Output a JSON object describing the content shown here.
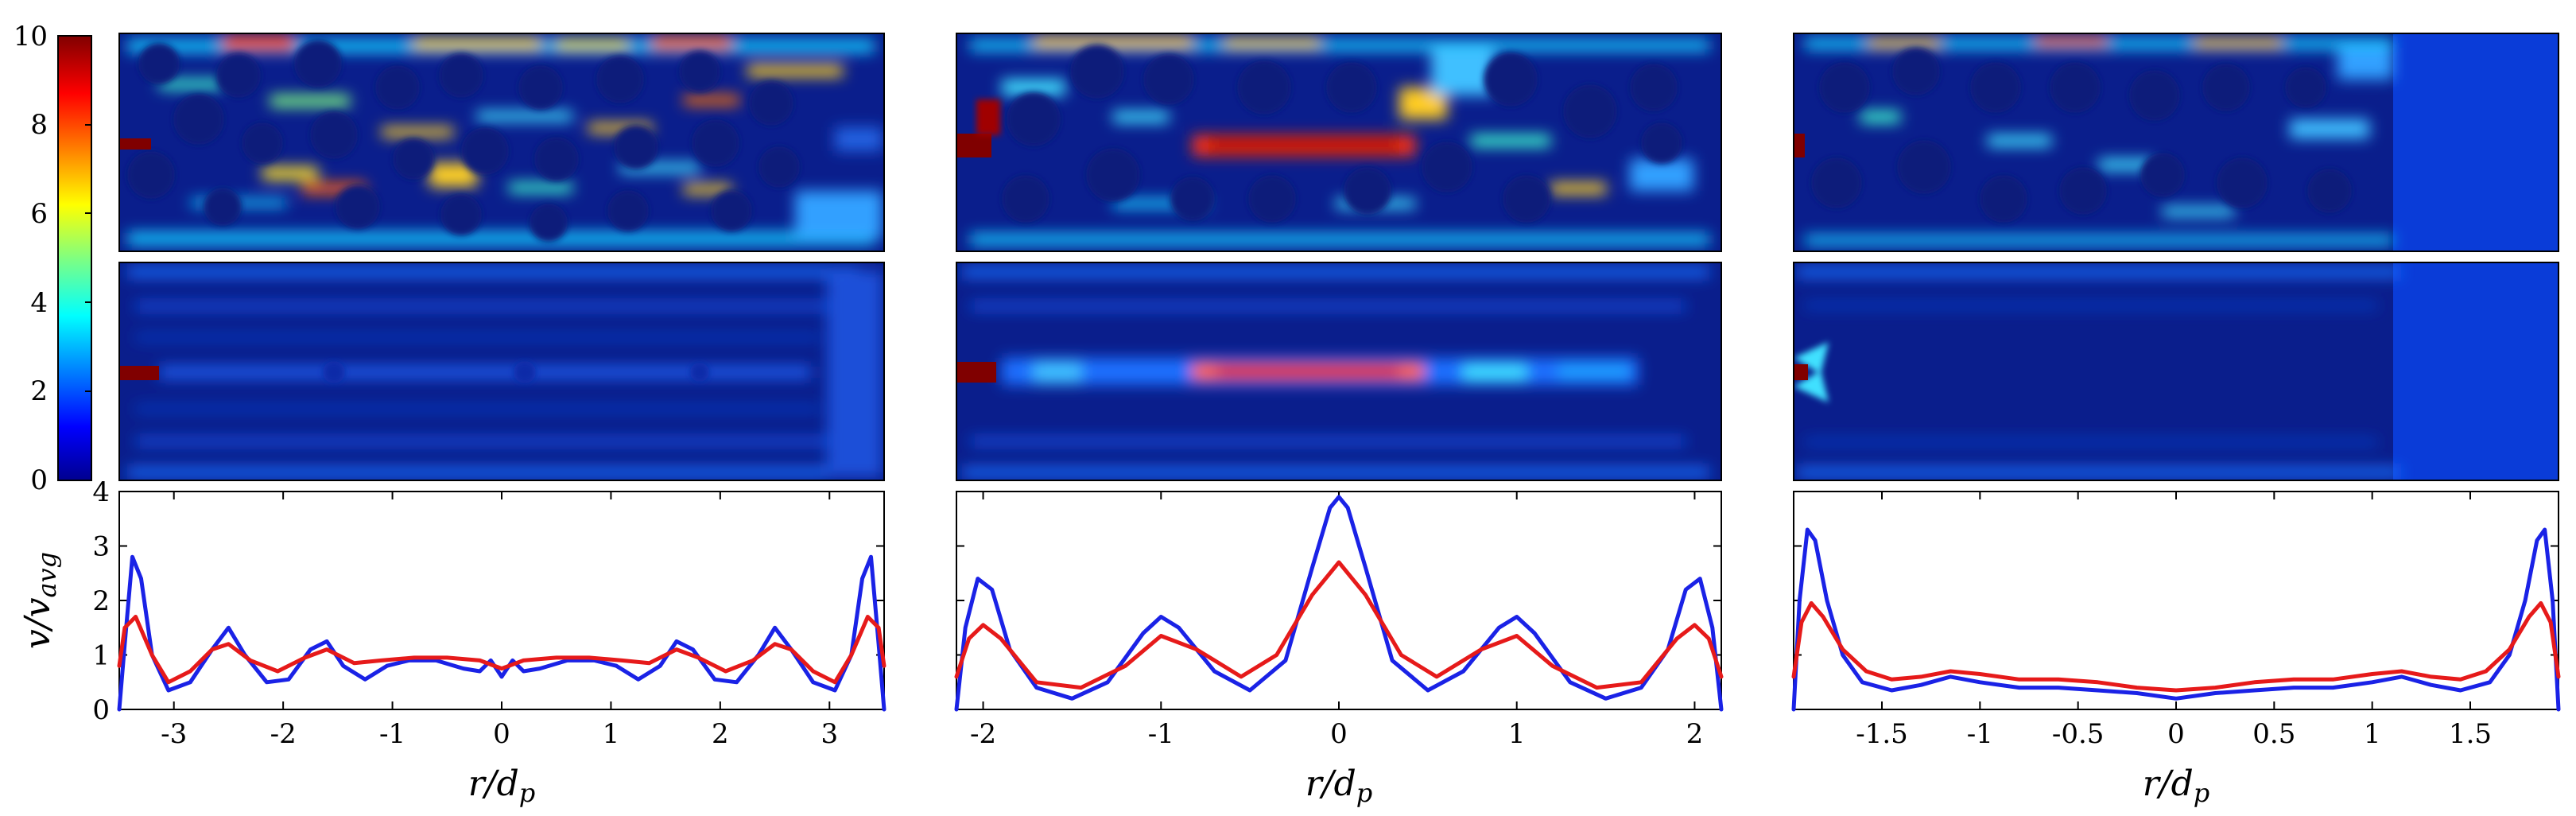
{
  "colorbar": {
    "tick_labels": [
      "10",
      "8",
      "6",
      "4",
      "2",
      "0"
    ],
    "range": [
      0,
      10
    ],
    "colormap": "jet"
  },
  "colors": {
    "blue_line": "#1a22e6",
    "red_line": "#e61a1a",
    "field_background": "#0a1e8c"
  },
  "field_maps": [
    {
      "column": 1,
      "rows": [
        "upper",
        "lower"
      ]
    },
    {
      "column": 2,
      "rows": [
        "upper",
        "lower"
      ]
    },
    {
      "column": 3,
      "rows": [
        "upper",
        "lower"
      ]
    }
  ],
  "chart_data": [
    {
      "type": "line",
      "ylabel": "v/v_avg",
      "xlabel": "r/d_p",
      "xlim": [
        -3.5,
        3.5
      ],
      "ylim": [
        0,
        4
      ],
      "xticks": [
        -3,
        -2,
        -1,
        0,
        1,
        2,
        3
      ],
      "xtick_labels": [
        "-3",
        "-2",
        "-1",
        "0",
        "1",
        "2",
        "3"
      ],
      "yticks": [
        0,
        1,
        2,
        3,
        4
      ],
      "ytick_labels": [
        "0",
        "1",
        "2",
        "3",
        "4"
      ],
      "series": [
        {
          "name": "blue",
          "x": [
            -3.5,
            -3.45,
            -3.38,
            -3.3,
            -3.2,
            -3.05,
            -2.85,
            -2.65,
            -2.5,
            -2.35,
            -2.15,
            -1.95,
            -1.75,
            -1.6,
            -1.45,
            -1.25,
            -1.05,
            -0.85,
            -0.6,
            -0.35,
            -0.2,
            -0.1,
            0.0,
            0.1,
            0.2,
            0.35,
            0.6,
            0.85,
            1.05,
            1.25,
            1.45,
            1.6,
            1.75,
            1.95,
            2.15,
            2.35,
            2.5,
            2.65,
            2.85,
            3.05,
            3.2,
            3.3,
            3.38,
            3.45,
            3.5
          ],
          "y": [
            0.0,
            1.2,
            2.8,
            2.4,
            1.0,
            0.35,
            0.5,
            1.1,
            1.5,
            1.0,
            0.5,
            0.55,
            1.1,
            1.25,
            0.8,
            0.55,
            0.8,
            0.9,
            0.9,
            0.75,
            0.7,
            0.9,
            0.6,
            0.9,
            0.7,
            0.75,
            0.9,
            0.9,
            0.8,
            0.55,
            0.8,
            1.25,
            1.1,
            0.55,
            0.5,
            1.0,
            1.5,
            1.1,
            0.5,
            0.35,
            1.0,
            2.4,
            2.8,
            1.2,
            0.0
          ]
        },
        {
          "name": "red",
          "x": [
            -3.5,
            -3.45,
            -3.35,
            -3.2,
            -3.05,
            -2.85,
            -2.65,
            -2.5,
            -2.3,
            -2.05,
            -1.8,
            -1.6,
            -1.35,
            -1.1,
            -0.8,
            -0.5,
            -0.2,
            0.0,
            0.2,
            0.5,
            0.8,
            1.1,
            1.35,
            1.6,
            1.8,
            2.05,
            2.3,
            2.5,
            2.65,
            2.85,
            3.05,
            3.2,
            3.35,
            3.45,
            3.5
          ],
          "y": [
            0.8,
            1.5,
            1.7,
            1.0,
            0.5,
            0.7,
            1.1,
            1.2,
            0.9,
            0.7,
            0.95,
            1.1,
            0.85,
            0.9,
            0.95,
            0.95,
            0.9,
            0.75,
            0.9,
            0.95,
            0.95,
            0.9,
            0.85,
            1.1,
            0.95,
            0.7,
            0.9,
            1.2,
            1.1,
            0.7,
            0.5,
            1.0,
            1.7,
            1.5,
            0.8
          ]
        }
      ]
    },
    {
      "type": "line",
      "xlabel": "r/d_p",
      "xlim": [
        -2.15,
        2.15
      ],
      "ylim": [
        0,
        4
      ],
      "xticks": [
        -2,
        -1,
        0,
        1,
        2
      ],
      "xtick_labels": [
        "-2",
        "-1",
        "0",
        "1",
        "2"
      ],
      "series": [
        {
          "name": "blue",
          "x": [
            -2.15,
            -2.1,
            -2.03,
            -1.95,
            -1.85,
            -1.7,
            -1.5,
            -1.3,
            -1.1,
            -1.0,
            -0.9,
            -0.7,
            -0.5,
            -0.3,
            -0.15,
            -0.05,
            0.0,
            0.05,
            0.15,
            0.3,
            0.5,
            0.7,
            0.9,
            1.0,
            1.1,
            1.3,
            1.5,
            1.7,
            1.85,
            1.95,
            2.03,
            2.1,
            2.15
          ],
          "y": [
            0.0,
            1.5,
            2.4,
            2.2,
            1.1,
            0.4,
            0.2,
            0.5,
            1.4,
            1.7,
            1.5,
            0.7,
            0.35,
            0.9,
            2.6,
            3.7,
            3.9,
            3.7,
            2.6,
            0.9,
            0.35,
            0.7,
            1.5,
            1.7,
            1.4,
            0.5,
            0.2,
            0.4,
            1.1,
            2.2,
            2.4,
            1.5,
            0.0
          ]
        },
        {
          "name": "red",
          "x": [
            -2.15,
            -2.08,
            -2.0,
            -1.9,
            -1.7,
            -1.45,
            -1.2,
            -1.0,
            -0.8,
            -0.55,
            -0.35,
            -0.15,
            0.0,
            0.15,
            0.35,
            0.55,
            0.8,
            1.0,
            1.2,
            1.45,
            1.7,
            1.9,
            2.0,
            2.08,
            2.15
          ],
          "y": [
            0.6,
            1.3,
            1.55,
            1.3,
            0.5,
            0.4,
            0.8,
            1.35,
            1.1,
            0.6,
            1.0,
            2.1,
            2.7,
            2.1,
            1.0,
            0.6,
            1.1,
            1.35,
            0.8,
            0.4,
            0.5,
            1.3,
            1.55,
            1.3,
            0.6
          ]
        }
      ]
    },
    {
      "type": "line",
      "xlabel": "r/d_p",
      "xlim": [
        -1.95,
        1.95
      ],
      "ylim": [
        0,
        4
      ],
      "xticks": [
        -1.5,
        -1,
        -0.5,
        0,
        0.5,
        1,
        1.5
      ],
      "xtick_labels": [
        "-1.5",
        "-1",
        "-0.5",
        "0",
        "0.5",
        "1",
        "1.5"
      ],
      "series": [
        {
          "name": "blue",
          "x": [
            -1.95,
            -1.92,
            -1.88,
            -1.84,
            -1.78,
            -1.7,
            -1.6,
            -1.45,
            -1.3,
            -1.15,
            -1.0,
            -0.8,
            -0.6,
            -0.4,
            -0.2,
            0.0,
            0.2,
            0.4,
            0.6,
            0.8,
            1.0,
            1.15,
            1.3,
            1.45,
            1.6,
            1.7,
            1.78,
            1.84,
            1.88,
            1.92,
            1.95
          ],
          "y": [
            0.0,
            2.0,
            3.3,
            3.1,
            2.0,
            1.0,
            0.5,
            0.35,
            0.45,
            0.6,
            0.5,
            0.4,
            0.4,
            0.35,
            0.3,
            0.2,
            0.3,
            0.35,
            0.4,
            0.4,
            0.5,
            0.6,
            0.45,
            0.35,
            0.5,
            1.0,
            2.0,
            3.1,
            3.3,
            2.0,
            0.0
          ]
        },
        {
          "name": "red",
          "x": [
            -1.95,
            -1.91,
            -1.86,
            -1.8,
            -1.7,
            -1.58,
            -1.45,
            -1.3,
            -1.15,
            -1.0,
            -0.8,
            -0.6,
            -0.4,
            -0.2,
            0.0,
            0.2,
            0.4,
            0.6,
            0.8,
            1.0,
            1.15,
            1.3,
            1.45,
            1.58,
            1.7,
            1.8,
            1.86,
            1.91,
            1.95
          ],
          "y": [
            0.6,
            1.6,
            1.95,
            1.7,
            1.1,
            0.7,
            0.55,
            0.6,
            0.7,
            0.65,
            0.55,
            0.55,
            0.5,
            0.4,
            0.35,
            0.4,
            0.5,
            0.55,
            0.55,
            0.65,
            0.7,
            0.6,
            0.55,
            0.7,
            1.1,
            1.7,
            1.95,
            1.6,
            0.6
          ]
        }
      ]
    }
  ]
}
